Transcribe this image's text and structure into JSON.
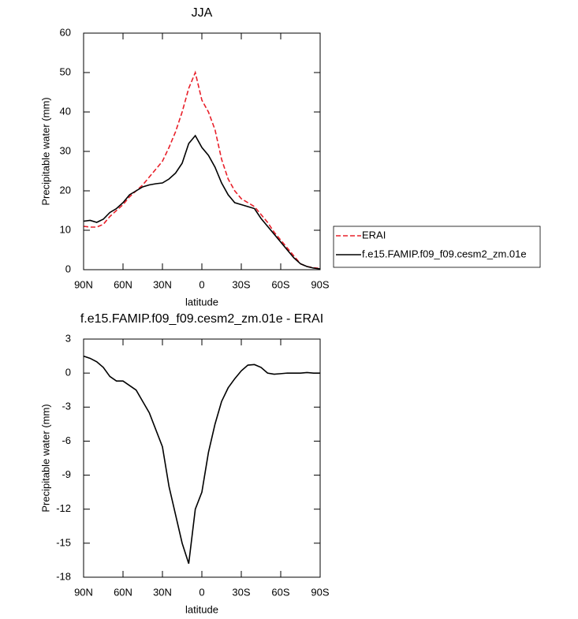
{
  "chart_data": [
    {
      "type": "line",
      "title": "JJA",
      "xlabel": "latitude",
      "ylabel": "Precipitable water (mm)",
      "x": [
        90,
        85,
        80,
        75,
        70,
        65,
        60,
        55,
        50,
        45,
        40,
        35,
        30,
        25,
        20,
        15,
        10,
        5,
        0,
        -5,
        -10,
        -15,
        -20,
        -25,
        -30,
        -35,
        -40,
        -45,
        -50,
        -55,
        -60,
        -65,
        -70,
        -75,
        -80,
        -85,
        -90
      ],
      "series": [
        {
          "name": "ERAI",
          "color": "#e8202a",
          "dash": true,
          "values": [
            11,
            10.8,
            10.8,
            11.5,
            13.5,
            15,
            16.5,
            18.5,
            20,
            21.5,
            23.5,
            25.5,
            27.5,
            31,
            35,
            40,
            46,
            50,
            43,
            40,
            35.5,
            28,
            23,
            20,
            18,
            17,
            16,
            14,
            12,
            9.5,
            7.5,
            5.5,
            3.5,
            1.5,
            0.8,
            0.5,
            0.3
          ]
        },
        {
          "name": "f.e15.FAMIP.f09_f09.cesm2_zm.01e",
          "color": "#000000",
          "dash": false,
          "values": [
            12.3,
            12.5,
            12,
            12.8,
            14.5,
            15.5,
            17,
            19,
            20,
            21,
            21.5,
            21.8,
            22,
            23,
            24.5,
            27,
            32,
            34,
            31,
            29,
            26,
            22,
            19,
            17,
            16.5,
            16,
            15.5,
            13,
            11,
            9,
            7,
            5,
            3,
            1.5,
            0.8,
            0.4,
            0.2
          ]
        }
      ],
      "xlim": [
        90,
        -90
      ],
      "xticks": [
        {
          "value": 90,
          "label": "90N"
        },
        {
          "value": 60,
          "label": "60N"
        },
        {
          "value": 30,
          "label": "30N"
        },
        0,
        {
          "value": -30,
          "label": "30S"
        },
        {
          "value": -60,
          "label": "60S"
        },
        {
          "value": -90,
          "label": "90S"
        }
      ],
      "ylim": [
        0,
        60
      ],
      "yticks": [
        0,
        10,
        20,
        30,
        40,
        50,
        60
      ],
      "legend": "outside-right"
    },
    {
      "type": "line",
      "title": "f.e15.FAMIP.f09_f09.cesm2_zm.01e - ERAI",
      "xlabel": "latitude",
      "ylabel": "Precipitable water (mm)",
      "x": [
        90,
        85,
        80,
        75,
        70,
        65,
        60,
        55,
        50,
        45,
        40,
        35,
        30,
        25,
        20,
        15,
        10,
        5,
        0,
        -5,
        -10,
        -15,
        -20,
        -25,
        -30,
        -35,
        -40,
        -45,
        -50,
        -55,
        -60,
        -65,
        -70,
        -75,
        -80,
        -85,
        -90
      ],
      "series": [
        {
          "color": "#000000",
          "dash": false,
          "values": [
            1.5,
            1.3,
            1,
            0.5,
            -0.3,
            -0.7,
            -0.7,
            -1.1,
            -1.5,
            -2.5,
            -3.5,
            -5,
            -6.5,
            -10,
            -12.5,
            -15,
            -16.8,
            -12,
            -10.5,
            -7,
            -4.5,
            -2.5,
            -1.3,
            -0.5,
            0.2,
            0.7,
            0.75,
            0.5,
            0,
            -0.1,
            -0.05,
            0,
            0,
            0,
            0.05,
            0,
            0
          ]
        }
      ],
      "xlim": [
        90,
        -90
      ],
      "xticks": [
        {
          "value": 90,
          "label": "90N"
        },
        {
          "value": 60,
          "label": "60N"
        },
        {
          "value": 30,
          "label": "30N"
        },
        0,
        {
          "value": -30,
          "label": "30S"
        },
        {
          "value": -60,
          "label": "60S"
        },
        {
          "value": -90,
          "label": "90S"
        }
      ],
      "ylim": [
        -18,
        3
      ],
      "yticks": [
        -18,
        -15,
        -12,
        -9,
        -6,
        -3,
        0,
        3
      ]
    }
  ]
}
